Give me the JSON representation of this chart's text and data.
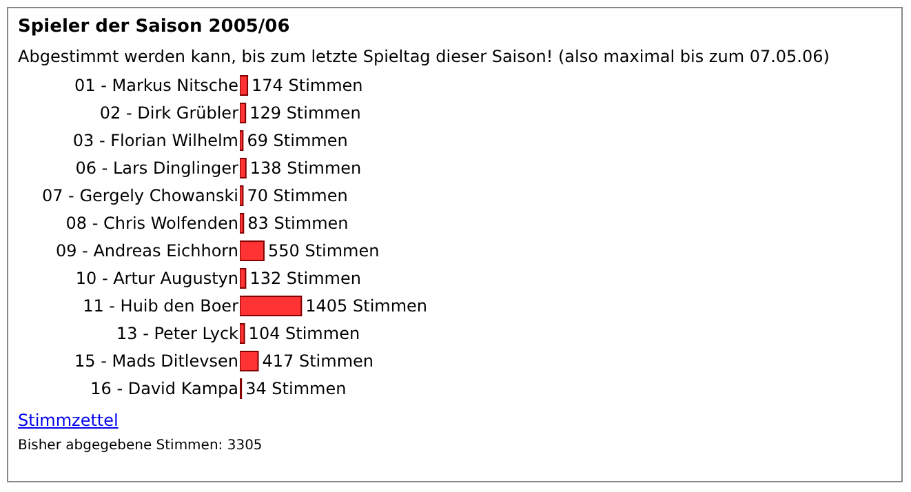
{
  "chart_data": {
    "type": "bar",
    "orientation": "horizontal",
    "title": "Spieler der Saison 2005/06",
    "subtitle": "Abgestimmt werden kann, bis zum letzte Spieltag dieser Saison! (also maximal bis zum 07.05.06)",
    "categories": [
      "01 - Markus Nitsche",
      "02 - Dirk Grübler",
      "03 - Florian Wilhelm",
      "06 - Lars Dinglinger",
      "07 - Gergely Chowanski",
      "08 - Chris Wolfenden",
      "09 - Andreas Eichhorn",
      "10 - Artur Augustyn",
      "11 - Huib den Boer",
      "13 - Peter Lyck",
      "15 - Mads Ditlevsen",
      "16 - David Kampa"
    ],
    "values": [
      174,
      129,
      69,
      138,
      70,
      83,
      550,
      132,
      1405,
      104,
      417,
      34
    ],
    "value_labels": [
      "174 Stimmen",
      "129 Stimmen",
      "69 Stimmen",
      "138 Stimmen",
      "70 Stimmen",
      "83 Stimmen",
      "550 Stimmen",
      "132 Stimmen",
      "1405 Stimmen",
      "104 Stimmen",
      "417 Stimmen",
      "34 Stimmen"
    ],
    "color": "#ff3333",
    "grid": false,
    "tick_labels": "y",
    "annotations": [
      "Stimmzettel",
      "Bisher abgegebene Stimmen: 3305"
    ]
  }
}
